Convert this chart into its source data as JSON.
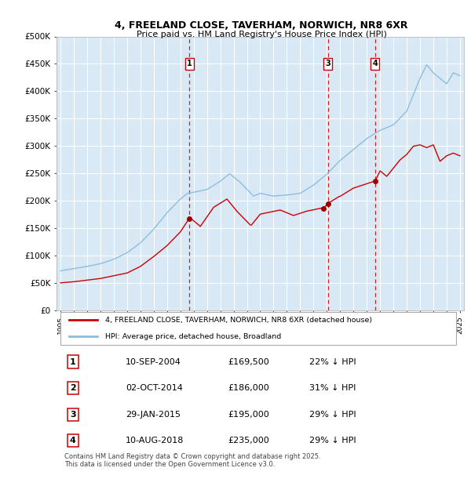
{
  "title": "4, FREELAND CLOSE, TAVERHAM, NORWICH, NR8 6XR",
  "subtitle": "Price paid vs. HM Land Registry's House Price Index (HPI)",
  "bg_color": "#d9e8f5",
  "grid_color": "#ffffff",
  "hpi_color": "#8bbfdd",
  "price_color": "#cc0000",
  "ylim": [
    0,
    500000
  ],
  "yticks": [
    0,
    50000,
    100000,
    150000,
    200000,
    250000,
    300000,
    350000,
    400000,
    450000,
    500000
  ],
  "ytick_labels": [
    "£0",
    "£50K",
    "£100K",
    "£150K",
    "£200K",
    "£250K",
    "£300K",
    "£350K",
    "£400K",
    "£450K",
    "£500K"
  ],
  "legend_price_label": "4, FREELAND CLOSE, TAVERHAM, NORWICH, NR8 6XR (detached house)",
  "legend_hpi_label": "HPI: Average price, detached house, Broadland",
  "footer": "Contains HM Land Registry data © Crown copyright and database right 2025.\nThis data is licensed under the Open Government Licence v3.0.",
  "sales": [
    {
      "num": 1,
      "date": "10-SEP-2004",
      "price": 169500,
      "pct": "22% ↓ HPI",
      "x_year": 2004.69,
      "show_vline": true
    },
    {
      "num": 2,
      "date": "02-OCT-2014",
      "price": 186000,
      "pct": "31% ↓ HPI",
      "x_year": 2014.75,
      "show_vline": false
    },
    {
      "num": 3,
      "date": "29-JAN-2015",
      "price": 195000,
      "pct": "29% ↓ HPI",
      "x_year": 2015.08,
      "show_vline": true
    },
    {
      "num": 4,
      "date": "10-AUG-2018",
      "price": 235000,
      "pct": "29% ↓ HPI",
      "x_year": 2018.61,
      "show_vline": true
    }
  ],
  "xlim": [
    1994.7,
    2025.3
  ],
  "xtick_years": [
    1995,
    1996,
    1997,
    1998,
    1999,
    2000,
    2001,
    2002,
    2003,
    2004,
    2005,
    2006,
    2007,
    2008,
    2009,
    2010,
    2011,
    2012,
    2013,
    2014,
    2015,
    2016,
    2017,
    2018,
    2019,
    2020,
    2021,
    2022,
    2023,
    2024,
    2025
  ]
}
